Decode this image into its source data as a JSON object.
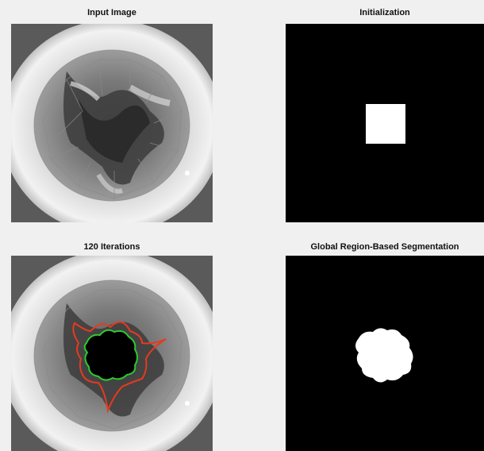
{
  "window": {
    "background": "#f0f0f0"
  },
  "panels": {
    "top_left": {
      "title": "Input Image"
    },
    "top_right": {
      "title": "Initialization"
    },
    "bottom_left": {
      "title": "120 Iterations"
    },
    "bottom_right": {
      "title": "Global Region-Based Segmentation"
    }
  },
  "colors": {
    "contour_outer": "#e8391f",
    "contour_inner": "#2ec82e",
    "mask": "#ffffff",
    "background": "#000000"
  },
  "icons": {
    "input_image": "endoscopic-valve-image",
    "overlay_image": "endoscopic-valve-image-with-contours",
    "init_mask": "square-mask",
    "segmentation_mask": "segmented-region-mask"
  }
}
